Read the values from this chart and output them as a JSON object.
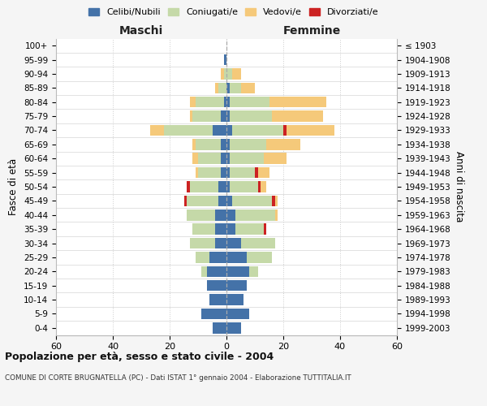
{
  "age_groups": [
    "0-4",
    "5-9",
    "10-14",
    "15-19",
    "20-24",
    "25-29",
    "30-34",
    "35-39",
    "40-44",
    "45-49",
    "50-54",
    "55-59",
    "60-64",
    "65-69",
    "70-74",
    "75-79",
    "80-84",
    "85-89",
    "90-94",
    "95-99",
    "100+"
  ],
  "birth_years": [
    "1999-2003",
    "1994-1998",
    "1989-1993",
    "1984-1988",
    "1979-1983",
    "1974-1978",
    "1969-1973",
    "1964-1968",
    "1959-1963",
    "1954-1958",
    "1949-1953",
    "1944-1948",
    "1939-1943",
    "1934-1938",
    "1929-1933",
    "1924-1928",
    "1919-1923",
    "1914-1918",
    "1909-1913",
    "1904-1908",
    "≤ 1903"
  ],
  "colors": {
    "celibi": "#4472a8",
    "coniugati": "#c5d9a8",
    "vedovi": "#f5c97a",
    "divorziati": "#cc2222"
  },
  "maschi": {
    "celibi": [
      5,
      9,
      6,
      7,
      7,
      6,
      4,
      4,
      4,
      3,
      3,
      2,
      2,
      2,
      5,
      2,
      1,
      0,
      0,
      1,
      0
    ],
    "coniugati": [
      0,
      0,
      0,
      0,
      2,
      5,
      9,
      8,
      10,
      11,
      10,
      8,
      8,
      9,
      17,
      10,
      10,
      3,
      1,
      0,
      0
    ],
    "vedovi": [
      0,
      0,
      0,
      0,
      0,
      0,
      0,
      0,
      0,
      0,
      0,
      1,
      2,
      1,
      5,
      1,
      2,
      1,
      1,
      0,
      0
    ],
    "divorziati": [
      0,
      0,
      0,
      0,
      0,
      0,
      0,
      0,
      0,
      1,
      1,
      0,
      0,
      0,
      0,
      0,
      0,
      0,
      0,
      0,
      0
    ]
  },
  "femmine": {
    "celibi": [
      5,
      8,
      6,
      7,
      8,
      7,
      5,
      3,
      3,
      2,
      1,
      1,
      1,
      1,
      2,
      1,
      1,
      1,
      0,
      0,
      0
    ],
    "coniugati": [
      0,
      0,
      0,
      0,
      3,
      9,
      12,
      10,
      14,
      14,
      10,
      9,
      12,
      13,
      18,
      15,
      14,
      4,
      2,
      0,
      0
    ],
    "vedovi": [
      0,
      0,
      0,
      0,
      0,
      0,
      0,
      0,
      1,
      1,
      2,
      4,
      8,
      12,
      17,
      18,
      20,
      5,
      3,
      0,
      0
    ],
    "divorziati": [
      0,
      0,
      0,
      0,
      0,
      0,
      0,
      1,
      0,
      1,
      1,
      1,
      0,
      0,
      1,
      0,
      0,
      0,
      0,
      0,
      0
    ]
  },
  "xlim": 60,
  "title1": "Popolazione per età, sesso e stato civile - 2004",
  "title2": "COMUNE DI CORTE BRUGNATELLA (PC) - Dati ISTAT 1° gennaio 2004 - Elaborazione TUTTITALIA.IT",
  "ylabel": "Fasce di età",
  "ylabel_right": "Anni di nascita",
  "label_maschi": "Maschi",
  "label_femmine": "Femmine",
  "legend_labels": [
    "Celibi/Nubili",
    "Coniugati/e",
    "Vedovi/e",
    "Divorziati/e"
  ],
  "bg_color": "#f5f5f5",
  "plot_bg_color": "#ffffff",
  "grid_color": "#cccccc"
}
